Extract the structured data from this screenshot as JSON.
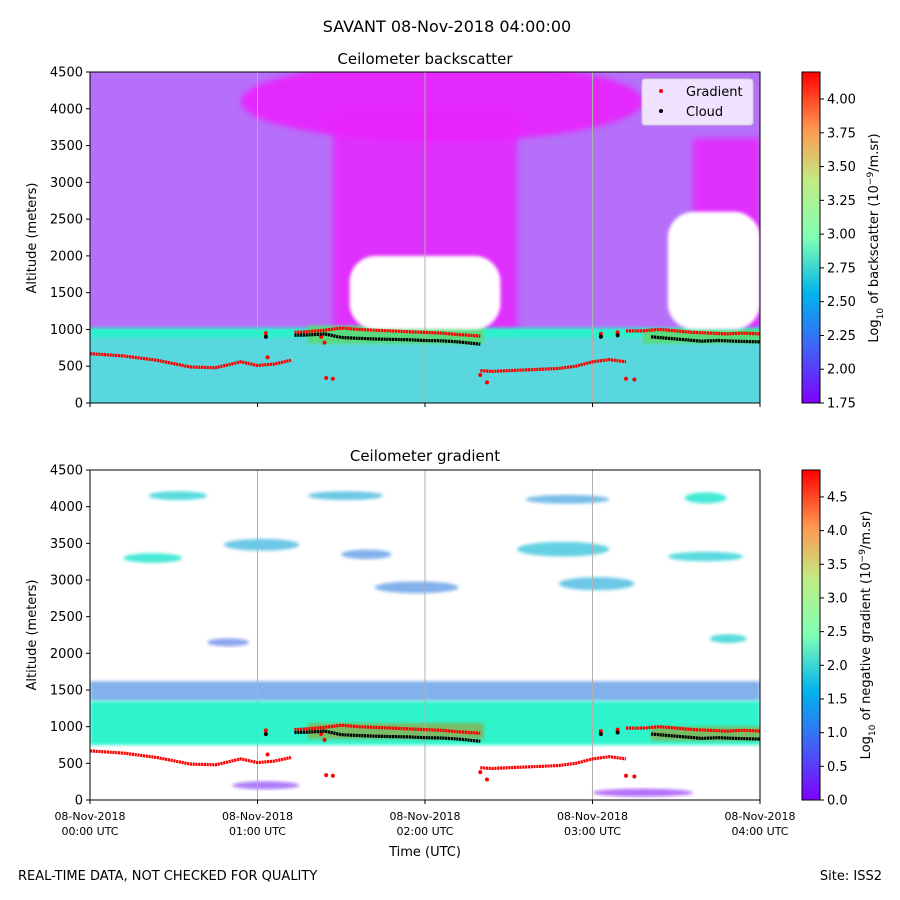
{
  "figure": {
    "suptitle": "SAVANT 08-Nov-2018 04:00:00",
    "footer_left": "REAL-TIME DATA, NOT CHECKED FOR QUALITY",
    "footer_right": "Site: ISS2",
    "xlabel": "Time (UTC)"
  },
  "chart_data": [
    {
      "type": "heatmap",
      "title": "Ceilometer backscatter",
      "xlabel": "",
      "ylabel": "Altitude (meters)",
      "xlim": [
        0,
        4
      ],
      "ylim": [
        0,
        4500
      ],
      "xticks": [
        {
          "value": 0,
          "label_date": "08-Nov-2018",
          "label_time": "00:00 UTC"
        },
        {
          "value": 1,
          "label_date": "08-Nov-2018",
          "label_time": "01:00 UTC"
        },
        {
          "value": 2,
          "label_date": "08-Nov-2018",
          "label_time": "02:00 UTC"
        },
        {
          "value": 3,
          "label_date": "08-Nov-2018",
          "label_time": "03:00 UTC"
        },
        {
          "value": 4,
          "label_date": "08-Nov-2018",
          "label_time": "04:00 UTC"
        }
      ],
      "yticks": [
        0,
        500,
        1000,
        1500,
        2000,
        2500,
        3000,
        3500,
        4000,
        4500
      ],
      "grid_vertical": true,
      "colorbar": {
        "label": "Log10 of backscatter (10^-9/m.sr)",
        "label_parts": {
          "pre": "Log",
          "sub": "10",
          "mid": " of backscatter (10",
          "sup": "−9",
          "post": "/m.sr)"
        },
        "range": [
          1.75,
          4.2
        ],
        "ticks": [
          "1.75",
          "2.00",
          "2.25",
          "2.50",
          "2.75",
          "3.00",
          "3.25",
          "3.50",
          "3.75",
          "4.00"
        ],
        "colormap": "rainbow"
      },
      "legend": {
        "position": "top-right",
        "entries": [
          {
            "label": "Gradient",
            "color": "#ff0000"
          },
          {
            "label": "Cloud",
            "color": "#000000"
          }
        ]
      },
      "field": {
        "background_upper": 2.1,
        "background_aloft": 1.85,
        "aerosol_layer_top_m": 1000,
        "aerosol_layer_value": 2.6,
        "cloud_layer_value": 3.4,
        "saturated_regions": [
          {
            "t_start": 1.55,
            "t_end": 2.45,
            "alt_bottom": 1000,
            "alt_top": 2000
          },
          {
            "t_start": 3.45,
            "t_end": 4.0,
            "alt_bottom": 1000,
            "alt_top": 2600
          }
        ]
      },
      "series": [
        {
          "name": "Gradient",
          "color": "#ff0000",
          "segments": [
            {
              "t": [
                0.0,
                0.2,
                0.4,
                0.6,
                0.75,
                0.9,
                1.0,
                1.1,
                1.2
              ],
              "alt": [
                670,
                640,
                580,
                490,
                480,
                560,
                510,
                530,
                580
              ]
            },
            {
              "t": [
                1.22,
                1.3,
                1.4,
                1.5,
                1.6,
                1.7,
                1.8,
                1.9,
                2.0,
                2.1,
                2.2,
                2.33
              ],
              "alt": [
                960,
                970,
                990,
                1020,
                1000,
                990,
                980,
                970,
                960,
                950,
                930,
                910
              ]
            },
            {
              "t": [
                2.33,
                2.4,
                2.5,
                2.6,
                2.7,
                2.8,
                2.9,
                3.0,
                3.1,
                3.2
              ],
              "alt": [
                440,
                430,
                440,
                450,
                460,
                470,
                500,
                560,
                590,
                560
              ]
            },
            {
              "t": [
                3.2,
                3.3,
                3.4,
                3.5,
                3.6,
                3.7,
                3.8,
                3.9,
                4.0
              ],
              "alt": [
                980,
                980,
                1000,
                980,
                960,
                950,
                940,
                950,
                940
              ]
            }
          ],
          "scatter": [
            {
              "t": 1.05,
              "alt": 950
            },
            {
              "t": 1.06,
              "alt": 620
            },
            {
              "t": 1.38,
              "alt": 900
            },
            {
              "t": 1.4,
              "alt": 820
            },
            {
              "t": 1.41,
              "alt": 340
            },
            {
              "t": 1.45,
              "alt": 330
            },
            {
              "t": 2.33,
              "alt": 380
            },
            {
              "t": 2.37,
              "alt": 280
            },
            {
              "t": 3.05,
              "alt": 940
            },
            {
              "t": 3.15,
              "alt": 960
            },
            {
              "t": 3.2,
              "alt": 330
            },
            {
              "t": 3.25,
              "alt": 320
            }
          ]
        },
        {
          "name": "Cloud",
          "color": "#000000",
          "segments": [
            {
              "t": [
                1.22,
                1.3,
                1.4,
                1.5,
                1.6,
                1.7,
                1.8,
                1.9,
                2.0,
                2.1,
                2.2,
                2.33
              ],
              "alt": [
                920,
                925,
                940,
                890,
                880,
                870,
                865,
                860,
                850,
                845,
                830,
                800
              ]
            },
            {
              "t": [
                3.35,
                3.45,
                3.55,
                3.65,
                3.75,
                3.85,
                4.0
              ],
              "alt": [
                900,
                880,
                860,
                840,
                850,
                840,
                830
              ]
            }
          ],
          "scatter": [
            {
              "t": 1.05,
              "alt": 900
            },
            {
              "t": 3.05,
              "alt": 900
            },
            {
              "t": 3.15,
              "alt": 920
            }
          ]
        }
      ]
    },
    {
      "type": "heatmap",
      "title": "Ceilometer gradient",
      "xlabel": "Time (UTC)",
      "ylabel": "Altitude (meters)",
      "xlim": [
        0,
        4
      ],
      "ylim": [
        0,
        4500
      ],
      "xticks": [
        {
          "value": 0,
          "label_date": "08-Nov-2018",
          "label_time": "00:00 UTC"
        },
        {
          "value": 1,
          "label_date": "08-Nov-2018",
          "label_time": "01:00 UTC"
        },
        {
          "value": 2,
          "label_date": "08-Nov-2018",
          "label_time": "02:00 UTC"
        },
        {
          "value": 3,
          "label_date": "08-Nov-2018",
          "label_time": "03:00 UTC"
        },
        {
          "value": 4,
          "label_date": "08-Nov-2018",
          "label_time": "04:00 UTC"
        }
      ],
      "yticks": [
        0,
        500,
        1000,
        1500,
        2000,
        2500,
        3000,
        3500,
        4000,
        4500
      ],
      "grid_vertical": true,
      "colorbar": {
        "label": "Log10 of negative gradient (10^-9/m.sr)",
        "label_parts": {
          "pre": "Log",
          "sub": "10",
          "mid": " of negative gradient (10",
          "sup": "−9",
          "post": "/m.sr)"
        },
        "range": [
          0.0,
          4.9
        ],
        "ticks": [
          "0.0",
          "0.5",
          "1.0",
          "1.5",
          "2.0",
          "2.5",
          "3.0",
          "3.5",
          "4.0",
          "4.5"
        ],
        "colormap": "rainbow"
      },
      "field": {
        "bands": [
          {
            "alt_bottom": 1350,
            "alt_top": 1620,
            "value": 1.2
          },
          {
            "alt_bottom": 750,
            "alt_top": 1350,
            "value": 2.0
          }
        ],
        "patches": [
          {
            "t": 0.35,
            "alt": 4150,
            "w": 0.35,
            "h": 120,
            "value": 1.6
          },
          {
            "t": 1.3,
            "alt": 4150,
            "w": 0.45,
            "h": 120,
            "value": 1.4
          },
          {
            "t": 2.6,
            "alt": 4100,
            "w": 0.5,
            "h": 120,
            "value": 1.3
          },
          {
            "t": 3.55,
            "alt": 4120,
            "w": 0.25,
            "h": 150,
            "value": 1.8
          },
          {
            "t": 0.2,
            "alt": 3300,
            "w": 0.35,
            "h": 130,
            "value": 1.8
          },
          {
            "t": 0.8,
            "alt": 3480,
            "w": 0.45,
            "h": 160,
            "value": 1.4
          },
          {
            "t": 1.5,
            "alt": 3350,
            "w": 0.3,
            "h": 130,
            "value": 1.2
          },
          {
            "t": 2.55,
            "alt": 3420,
            "w": 0.55,
            "h": 200,
            "value": 1.5
          },
          {
            "t": 3.45,
            "alt": 3320,
            "w": 0.45,
            "h": 130,
            "value": 1.6
          },
          {
            "t": 1.7,
            "alt": 2900,
            "w": 0.5,
            "h": 160,
            "value": 1.2
          },
          {
            "t": 2.8,
            "alt": 2950,
            "w": 0.45,
            "h": 180,
            "value": 1.4
          },
          {
            "t": 0.7,
            "alt": 2150,
            "w": 0.25,
            "h": 90,
            "value": 1.1
          },
          {
            "t": 3.7,
            "alt": 2200,
            "w": 0.22,
            "h": 120,
            "value": 1.6
          },
          {
            "t": 0.85,
            "alt": 200,
            "w": 0.4,
            "h": 110,
            "value": 0.8
          },
          {
            "t": 3.0,
            "alt": 100,
            "w": 0.6,
            "h": 70,
            "value": 0.7
          }
        ]
      }
    }
  ]
}
